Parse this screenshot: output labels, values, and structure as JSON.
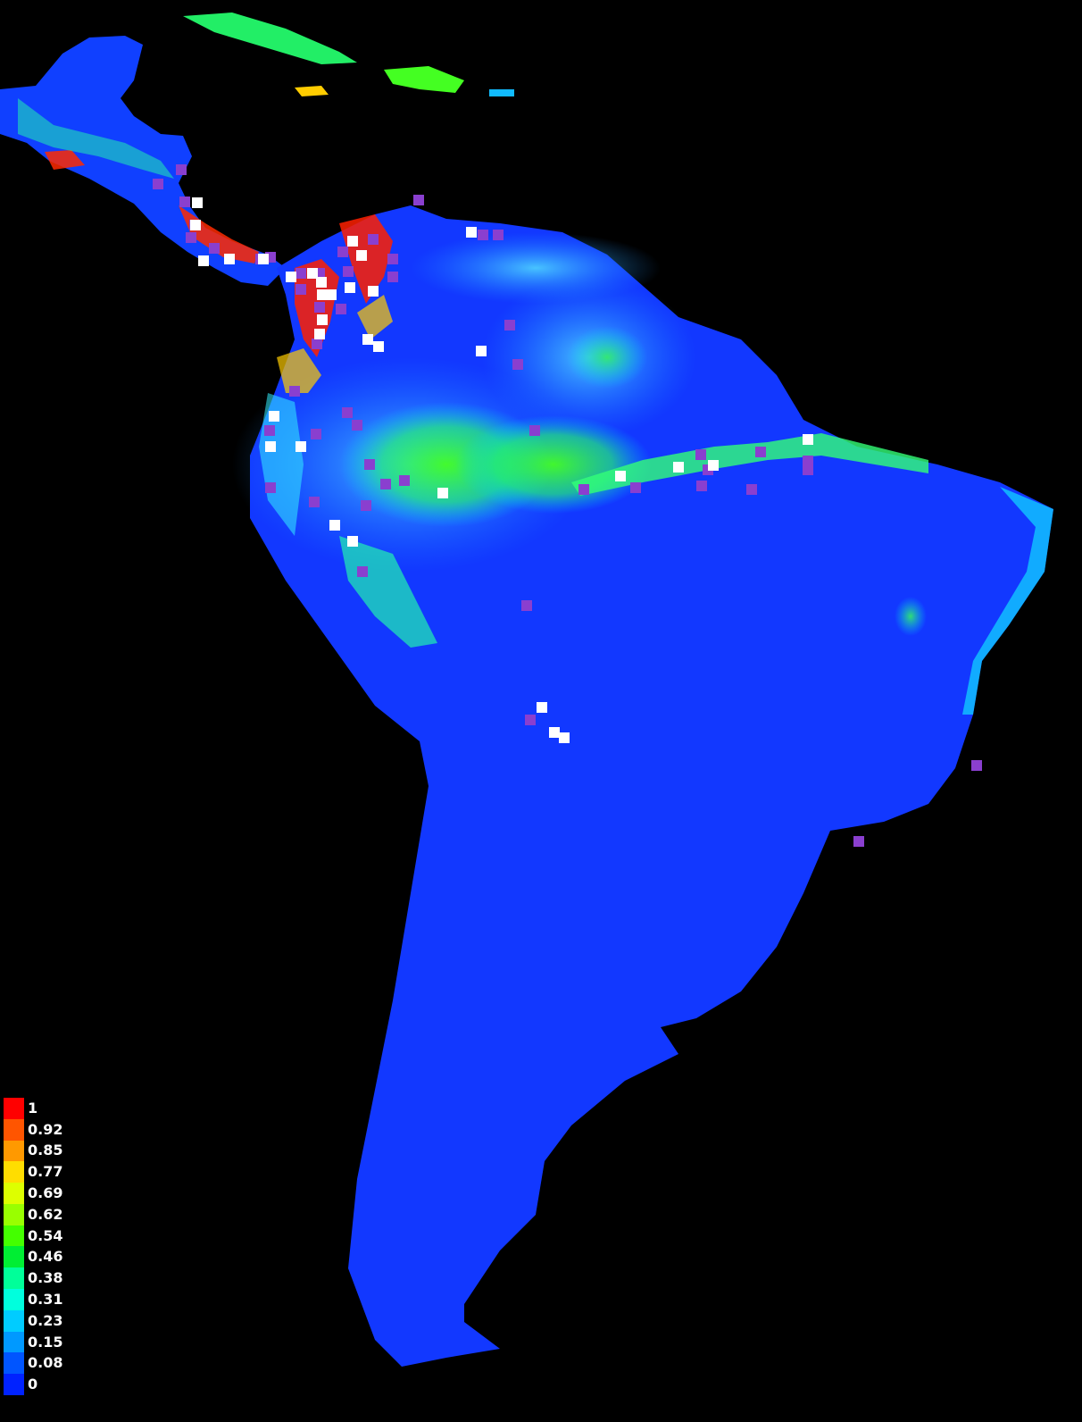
{
  "legend": {
    "items": [
      {
        "label": "1",
        "color": "#ff0000"
      },
      {
        "label": "0.92",
        "color": "#ff5500"
      },
      {
        "label": "0.85",
        "color": "#ff9900"
      },
      {
        "label": "0.77",
        "color": "#ffdd00"
      },
      {
        "label": "0.69",
        "color": "#ddff00"
      },
      {
        "label": "0.62",
        "color": "#99ff00"
      },
      {
        "label": "0.54",
        "color": "#44ff00"
      },
      {
        "label": "0.46",
        "color": "#00ee33"
      },
      {
        "label": "0.38",
        "color": "#00ff99"
      },
      {
        "label": "0.31",
        "color": "#00ffdd"
      },
      {
        "label": "0.23",
        "color": "#00ccff"
      },
      {
        "label": "0.15",
        "color": "#0099ff"
      },
      {
        "label": "0.08",
        "color": "#0055ff"
      },
      {
        "label": "0",
        "color": "#0022ff"
      }
    ]
  },
  "marker_colors": {
    "purple": "#8a3fcf",
    "white": "#ffffff"
  }
}
